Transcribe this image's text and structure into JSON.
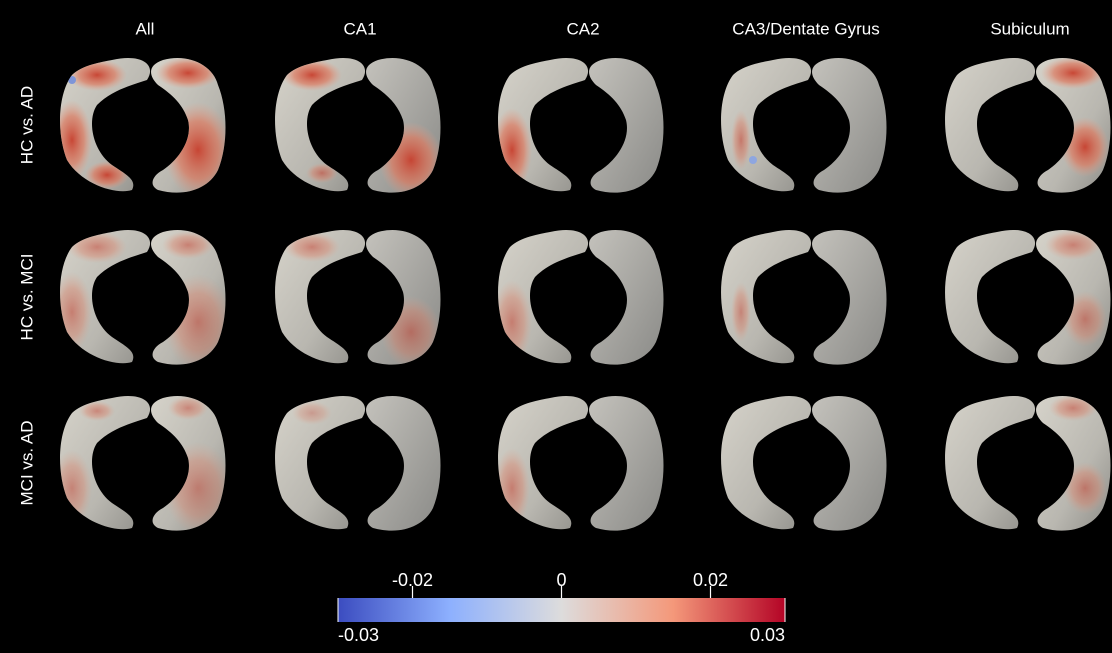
{
  "columns": [
    "All",
    "CA1",
    "CA2",
    "CA3/Dentate Gyrus",
    "Subiculum"
  ],
  "rows": [
    "HC vs. AD",
    "HC vs. MCI",
    "MCI vs. AD"
  ],
  "colorbar": {
    "range": [
      -0.03,
      0.03
    ],
    "ticks": [
      -0.02,
      0,
      0.02
    ]
  }
}
